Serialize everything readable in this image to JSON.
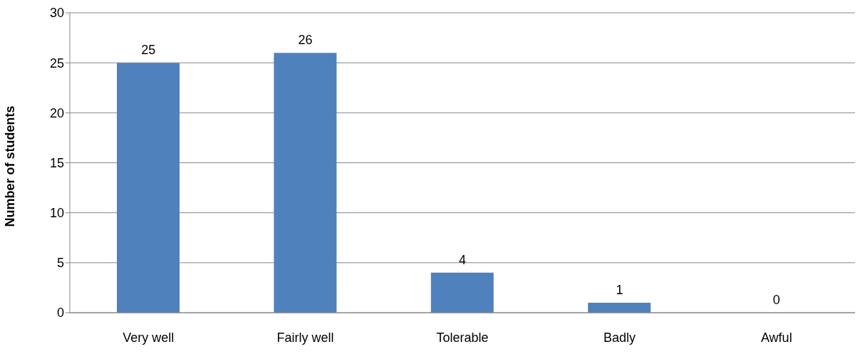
{
  "chart_data": {
    "type": "bar",
    "ylabel": "Number of students",
    "categories": [
      "Very well",
      "Fairly well",
      "Tolerable",
      "Badly",
      "Awful"
    ],
    "values": [
      25,
      26,
      4,
      1,
      0
    ],
    "color": "#4f81bd",
    "ylim": [
      0,
      30
    ],
    "yticks": [
      0,
      5,
      10,
      15,
      20,
      25,
      30
    ],
    "grid": "y",
    "data_labels": true
  }
}
